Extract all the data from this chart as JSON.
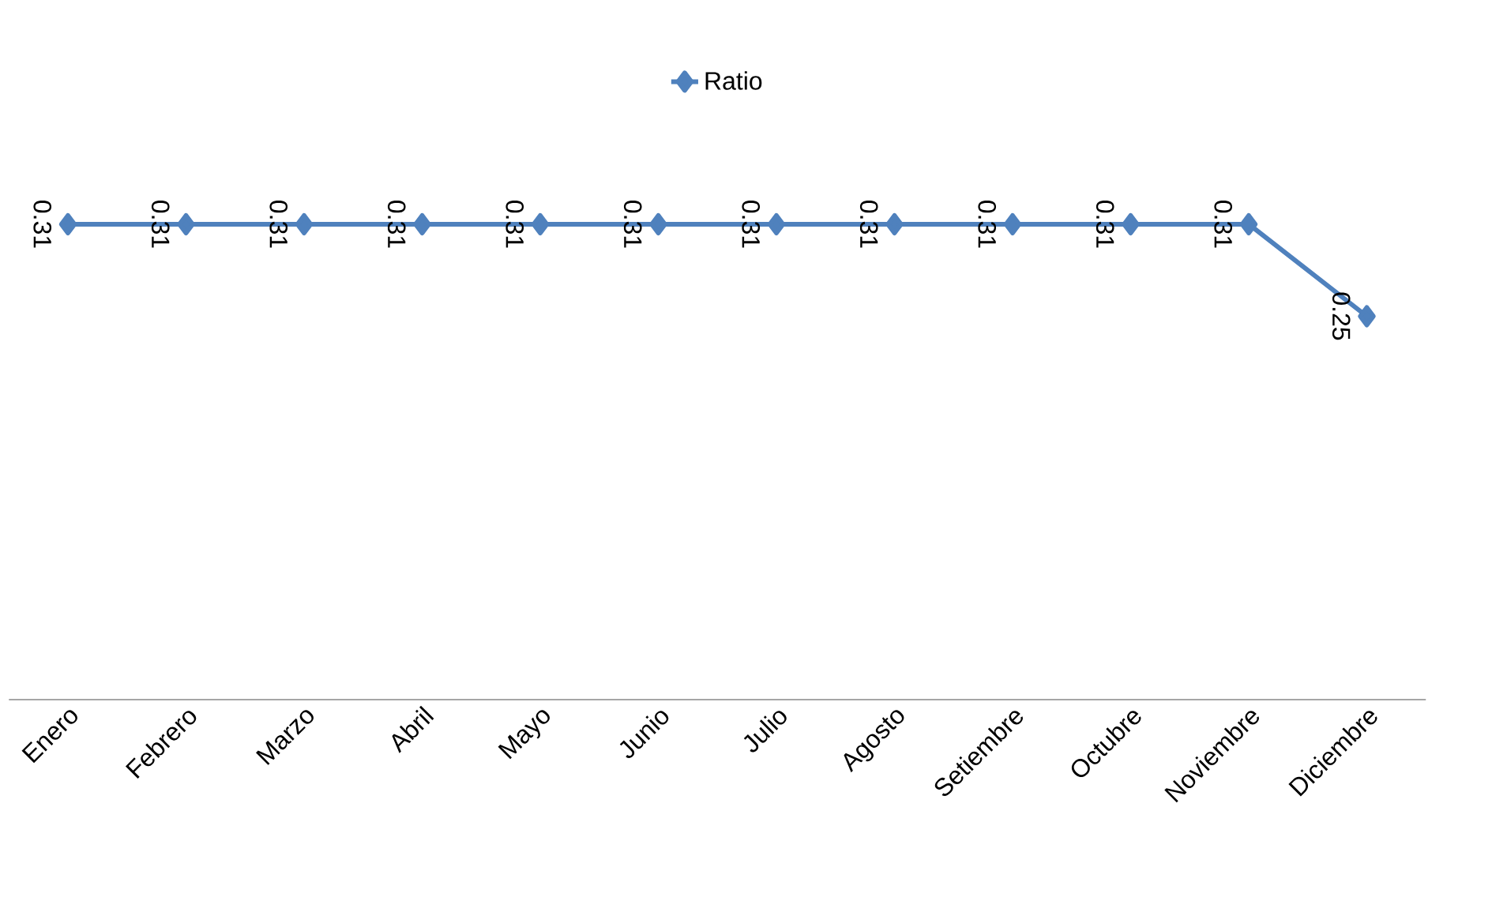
{
  "chart_data": {
    "type": "line",
    "categories": [
      "Enero",
      "Febrero",
      "Marzo",
      "Abril",
      "Mayo",
      "Junio",
      "Julio",
      "Agosto",
      "Setiembre",
      "Octubre",
      "Noviembre",
      "Diciembre"
    ],
    "series": [
      {
        "name": "Ratio",
        "color": "#4f81bd",
        "values": [
          0.31,
          0.31,
          0.31,
          0.31,
          0.31,
          0.31,
          0.31,
          0.31,
          0.31,
          0.31,
          0.31,
          0.25
        ],
        "value_labels": [
          "0.31",
          "0.31",
          "0.31",
          "0.31",
          "0.31",
          "0.31",
          "0.31",
          "0.31",
          "0.31",
          "0.31",
          "0.31",
          "0.25"
        ]
      }
    ],
    "legend": "top",
    "marker": "diamond",
    "line_style": "solid",
    "tick_labels": "x"
  }
}
